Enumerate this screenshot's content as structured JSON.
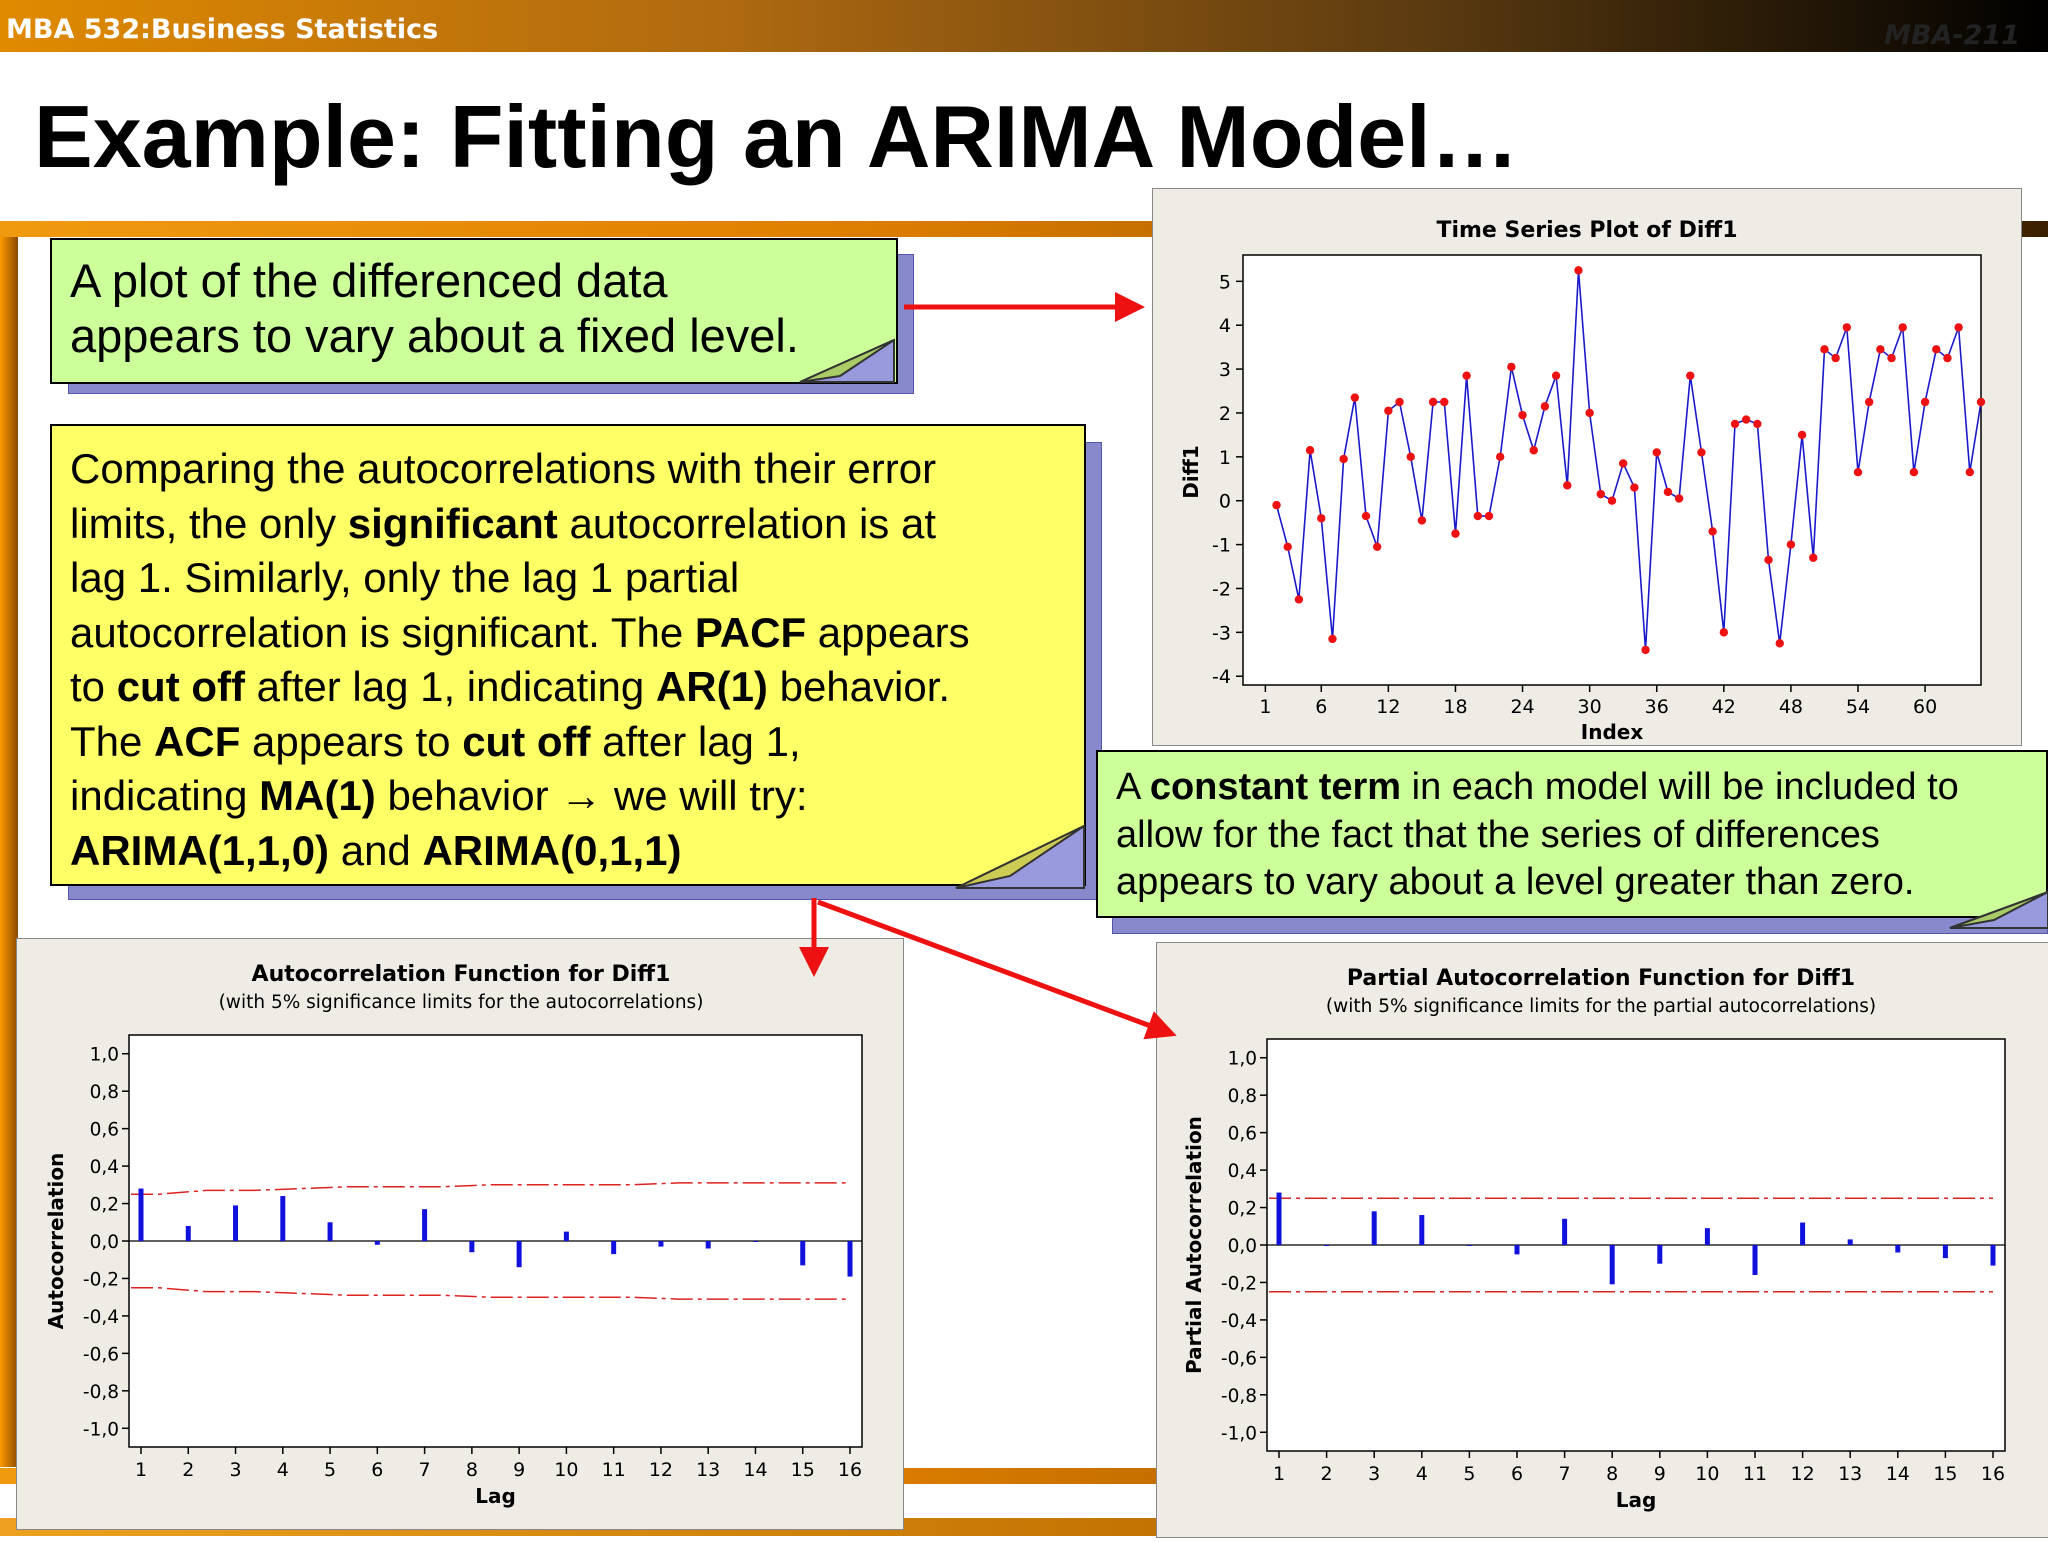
{
  "header": {
    "course": "MBA 532:Business Statistics",
    "code": "MBA-211"
  },
  "slide": {
    "title": "Example: Fitting an ARIMA Model…"
  },
  "callouts": {
    "plot_note": [
      "A plot of the differenced data",
      "appears to vary about a fixed level."
    ],
    "main_note": [
      [
        {
          "t": "Comparing the autocorrelations with their error"
        }
      ],
      [
        {
          "t": "limits, the only "
        },
        {
          "t": "significant",
          "b": true
        },
        {
          "t": " autocorrelation is at"
        }
      ],
      [
        {
          "t": "lag 1. Similarly, only the lag 1 partial"
        }
      ],
      [
        {
          "t": "autocorrelation is significant. The "
        },
        {
          "t": "PACF",
          "b": true
        },
        {
          "t": " appears"
        }
      ],
      [
        {
          "t": "to "
        },
        {
          "t": "cut off",
          "b": true
        },
        {
          "t": " after lag 1, indicating "
        },
        {
          "t": "AR(1)",
          "b": true
        },
        {
          "t": " behavior."
        }
      ],
      [
        {
          "t": "The "
        },
        {
          "t": "ACF",
          "b": true
        },
        {
          "t": " appears to "
        },
        {
          "t": "cut off",
          "b": true
        },
        {
          "t": " after lag 1,"
        }
      ],
      [
        {
          "t": "indicating "
        },
        {
          "t": "MA(1)",
          "b": true
        },
        {
          "t": " behavior → we will try:"
        }
      ],
      [
        {
          "t": "ARIMA(1,1,0)",
          "b": true
        },
        {
          "t": " and "
        },
        {
          "t": "ARIMA(0,1,1)",
          "b": true
        }
      ]
    ],
    "constant_note": [
      [
        {
          "t": "A "
        },
        {
          "t": "constant term",
          "b": true
        },
        {
          "t": " in each model will be included to"
        }
      ],
      [
        {
          "t": "allow for the fact that the series of differences"
        }
      ],
      [
        {
          "t": "appears to vary about a level greater than zero."
        }
      ]
    ]
  },
  "colors": {
    "green_box": "#ccff99",
    "yellow_box": "#ffff66",
    "arrow": "#ee1111",
    "series_line": "#1a1acc",
    "marker": "#ee1111",
    "limit_line": "#dd2222",
    "bar": "#1111dd"
  },
  "chart_data": [
    {
      "type": "line",
      "title": "Time Series Plot of Diff1",
      "xlabel": "Index",
      "ylabel": "Diff1",
      "xlim": [
        -1,
        65
      ],
      "ylim": [
        -4.2,
        5.6
      ],
      "xticks": [
        1,
        6,
        12,
        18,
        24,
        30,
        36,
        42,
        48,
        54,
        60
      ],
      "yticks": [
        -4,
        -3,
        -2,
        -1,
        0,
        1,
        2,
        3,
        4,
        5
      ],
      "x": [
        2,
        3,
        4,
        5,
        6,
        7,
        8,
        9,
        10,
        11,
        12,
        13,
        14,
        15,
        16,
        17,
        18,
        19,
        20,
        21,
        22,
        23,
        24,
        25,
        26,
        27,
        28,
        29,
        30,
        31,
        32,
        33,
        34,
        35,
        36,
        37,
        38,
        39,
        40,
        41,
        42,
        43,
        44,
        45,
        46,
        47,
        48,
        49,
        50,
        51,
        52,
        53,
        54,
        55,
        56,
        57,
        58,
        59,
        60,
        61,
        62,
        63,
        64,
        65
      ],
      "values": [
        -0.1,
        -1.05,
        -2.25,
        1.15,
        -0.4,
        -3.15,
        0.95,
        2.35,
        -0.35,
        -1.05,
        2.05,
        2.25,
        1.0,
        -0.45,
        2.25,
        2.25,
        -0.75,
        2.85,
        -0.35,
        -0.35,
        1.0,
        3.05,
        1.95,
        1.15,
        2.15,
        2.85,
        0.35,
        5.25,
        2.0,
        0.15,
        0.0,
        0.85,
        0.3,
        -3.4,
        1.1,
        0.2,
        0.05,
        2.85,
        1.1,
        -0.7,
        -3.0,
        1.75,
        1.85,
        1.75,
        -1.35,
        -3.25,
        -1.0,
        1.5,
        -1.3,
        3.45,
        3.25,
        3.95,
        0.65,
        2.25,
        3.45,
        3.25,
        3.95,
        0.65,
        2.25,
        3.45,
        3.25,
        3.95,
        0.65,
        2.25
      ],
      "grid": false
    },
    {
      "type": "bar",
      "title": "Autocorrelation Function for Diff1",
      "subtitle": "(with 5% significance limits for the autocorrelations)",
      "xlabel": "Lag",
      "ylabel": "Autocorrelation",
      "ylim": [
        -1.1,
        1.1
      ],
      "yticks": [
        "1,0",
        "0,8",
        "0,6",
        "0,4",
        "0,2",
        "0,0",
        "-0,2",
        "-0,4",
        "-0,6",
        "-0,8",
        "-1,0"
      ],
      "categories": [
        1,
        2,
        3,
        4,
        5,
        6,
        7,
        8,
        9,
        10,
        11,
        12,
        13,
        14,
        15,
        16
      ],
      "values": [
        0.28,
        0.08,
        0.19,
        0.24,
        0.1,
        -0.02,
        0.17,
        -0.06,
        -0.14,
        0.05,
        -0.07,
        -0.03,
        -0.04,
        0.0,
        -0.13,
        -0.19
      ],
      "upper_limit": [
        0.25,
        0.27,
        0.27,
        0.28,
        0.29,
        0.29,
        0.29,
        0.3,
        0.3,
        0.3,
        0.3,
        0.31,
        0.31,
        0.31,
        0.31,
        0.31
      ],
      "lower_limit": [
        -0.25,
        -0.27,
        -0.27,
        -0.28,
        -0.29,
        -0.29,
        -0.29,
        -0.3,
        -0.3,
        -0.3,
        -0.3,
        -0.31,
        -0.31,
        -0.31,
        -0.31,
        -0.31
      ],
      "grid": false
    },
    {
      "type": "bar",
      "title": "Partial Autocorrelation Function for Diff1",
      "subtitle": "(with 5% significance limits for the partial autocorrelations)",
      "xlabel": "Lag",
      "ylabel": "Partial Autocorrelation",
      "ylim": [
        -1.1,
        1.1
      ],
      "yticks": [
        "1,0",
        "0,8",
        "0,6",
        "0,4",
        "0,2",
        "0,0",
        "-0,2",
        "-0,4",
        "-0,6",
        "-0,8",
        "-1,0"
      ],
      "categories": [
        1,
        2,
        3,
        4,
        5,
        6,
        7,
        8,
        9,
        10,
        11,
        12,
        13,
        14,
        15,
        16
      ],
      "values": [
        0.28,
        0.0,
        0.18,
        0.16,
        0.0,
        -0.05,
        0.14,
        -0.21,
        -0.1,
        0.09,
        -0.16,
        0.12,
        0.03,
        -0.04,
        -0.07,
        -0.11
      ],
      "upper_limit": 0.25,
      "lower_limit": -0.25,
      "grid": false
    }
  ]
}
